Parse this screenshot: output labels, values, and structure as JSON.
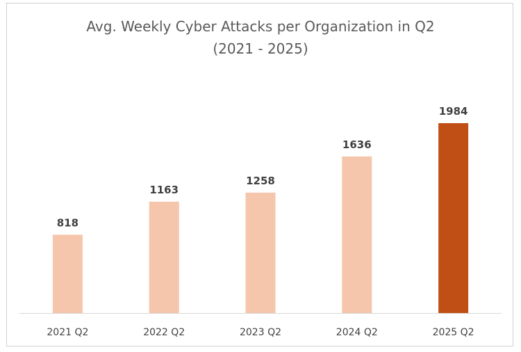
{
  "chart_data": {
    "type": "bar",
    "title": "Avg. Weekly Cyber Attacks per Organization in Q2",
    "subtitle": "(2021 - 2025)",
    "categories": [
      "2021 Q2",
      "2022 Q2",
      "2023 Q2",
      "2024 Q2",
      "2025 Q2"
    ],
    "values": [
      818,
      1163,
      1258,
      1636,
      1984
    ],
    "data_labels": [
      "818",
      "1163",
      "1258",
      "1636",
      "1984"
    ],
    "bar_colors": [
      "#f5c6ac",
      "#f5c6ac",
      "#f5c6ac",
      "#f5c6ac",
      "#c04f15"
    ],
    "axis_color": "#d9d9d9",
    "ylim": [
      0,
      2200
    ],
    "grid": false,
    "legend": "none"
  }
}
